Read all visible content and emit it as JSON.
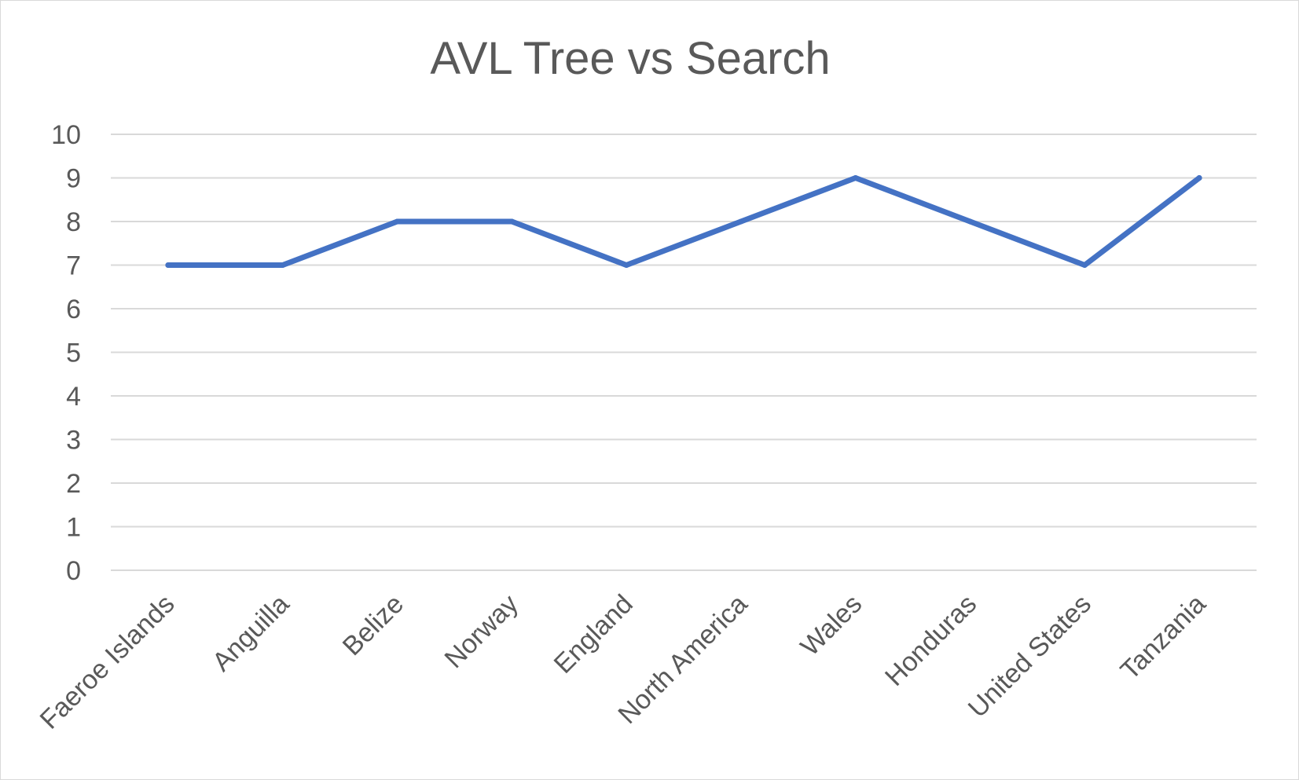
{
  "chart_data": {
    "type": "line",
    "title": "AVL Tree vs Search",
    "xlabel": "",
    "ylabel": "",
    "categories": [
      "Faeroe Islands",
      "Anguilla",
      "Belize",
      "Norway",
      "England",
      "North America",
      "Wales",
      "Honduras",
      "United States",
      "Tanzania"
    ],
    "series": [
      {
        "values": [
          7,
          7,
          8,
          8,
          7,
          8,
          9,
          8,
          7,
          9
        ],
        "color": "#4472c4"
      }
    ],
    "ylim": [
      0,
      10
    ],
    "yticks": [
      "0",
      "1",
      "2",
      "3",
      "4",
      "5",
      "6",
      "7",
      "8",
      "9",
      "10"
    ],
    "grid": true,
    "legend": "none"
  }
}
